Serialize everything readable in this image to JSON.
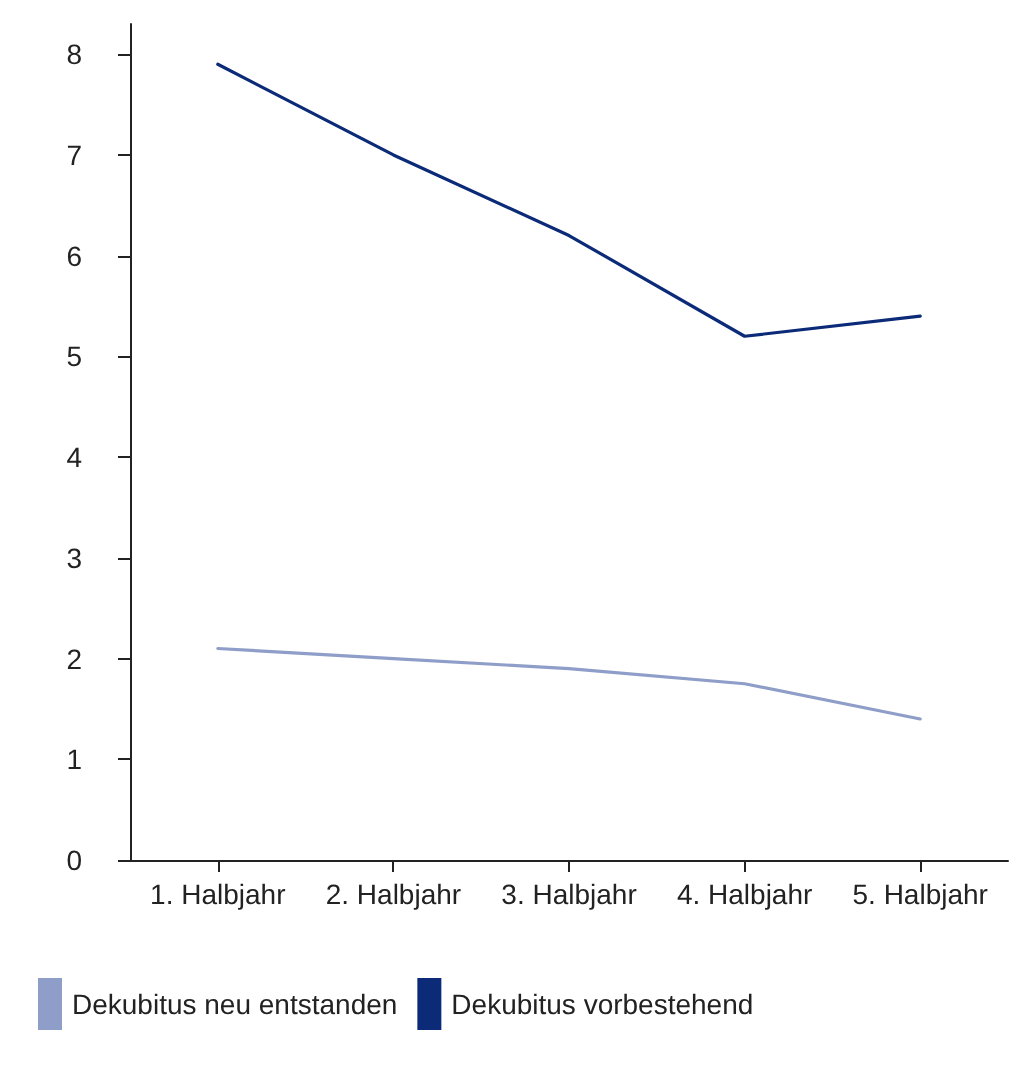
{
  "chart_data": {
    "type": "line",
    "categories": [
      "1. Halbjahr",
      "2. Halbjahr",
      "3. Halbjahr",
      "4. Halbjahr",
      "5. Halbjahr"
    ],
    "series": [
      {
        "name": "Dekubitus neu entstanden",
        "color": "#8e9ec8",
        "values": [
          2.1,
          2.0,
          1.9,
          1.75,
          1.4
        ]
      },
      {
        "name": "Dekubitus vorbestehend",
        "color": "#0b2a78",
        "values": [
          7.9,
          7.0,
          6.2,
          5.2,
          5.4
        ]
      }
    ],
    "ylim": [
      0,
      8.3
    ],
    "yticks": [
      0,
      1,
      2,
      3,
      4,
      5,
      6,
      7,
      8
    ],
    "grid": false,
    "legend": "bottom left",
    "marker": "none",
    "line_style": "solid"
  }
}
